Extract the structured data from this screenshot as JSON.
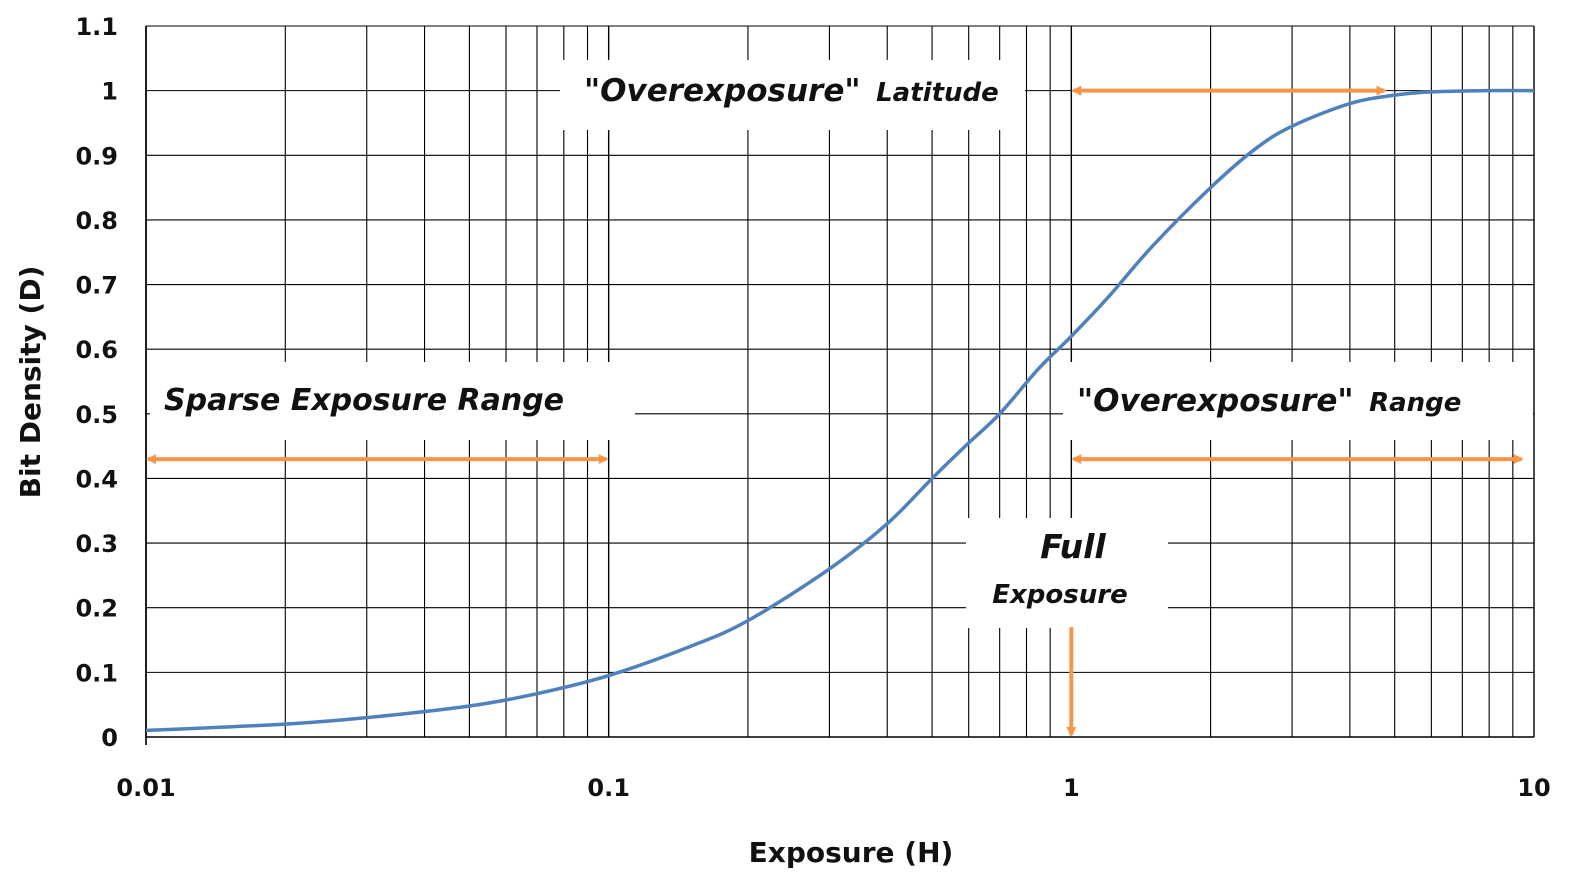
{
  "chart_data": {
    "type": "line",
    "xlabel": "Exposure (H)",
    "ylabel": "Bit Density (D)",
    "x_scale": "log",
    "xlim": [
      0.01,
      10
    ],
    "ylim": [
      0,
      1.1
    ],
    "x_ticks": [
      "0.01",
      "0.1",
      "1",
      "10"
    ],
    "y_ticks": [
      "0",
      "0.1",
      "0.2",
      "0.3",
      "0.4",
      "0.5",
      "0.6",
      "0.7",
      "0.8",
      "0.9",
      "1",
      "1.1"
    ],
    "grid": true,
    "colors": {
      "curve": "#4f81bd",
      "arrow": "#f79646"
    },
    "series": [
      {
        "x": [
          0.01,
          0.02,
          0.03,
          0.05,
          0.07,
          0.1,
          0.15,
          0.2,
          0.3,
          0.4,
          0.5,
          0.6,
          0.7,
          0.85,
          1,
          1.2,
          1.5,
          2,
          2.5,
          3,
          4,
          5,
          6,
          8,
          10
        ],
        "y": [
          0.01,
          0.02,
          0.03,
          0.048,
          0.067,
          0.095,
          0.14,
          0.18,
          0.26,
          0.33,
          0.4,
          0.455,
          0.5,
          0.57,
          0.62,
          0.68,
          0.76,
          0.85,
          0.91,
          0.945,
          0.98,
          0.993,
          0.998,
          1.0,
          1.0
        ]
      }
    ],
    "annotations": [
      {
        "id": "overexposure-latitude",
        "parts": [
          "\"Overexposure\"",
          "Latitude"
        ],
        "arrow_x": [
          1,
          4.8
        ],
        "arrow_y": 1.0
      },
      {
        "id": "sparse-exposure-range",
        "text": "Sparse Exposure Range",
        "arrow_x": [
          0.01,
          0.1
        ],
        "arrow_y": 0.43
      },
      {
        "id": "overexposure-range",
        "parts": [
          "\"Overexposure\"",
          "Range"
        ],
        "arrow_x": [
          1,
          9.5
        ],
        "arrow_y": 0.43
      },
      {
        "id": "full-exposure",
        "parts": [
          "Full",
          "Exposure"
        ],
        "arrow_x": [
          1
        ],
        "arrow_y_range": [
          0.17,
          0
        ]
      }
    ]
  }
}
